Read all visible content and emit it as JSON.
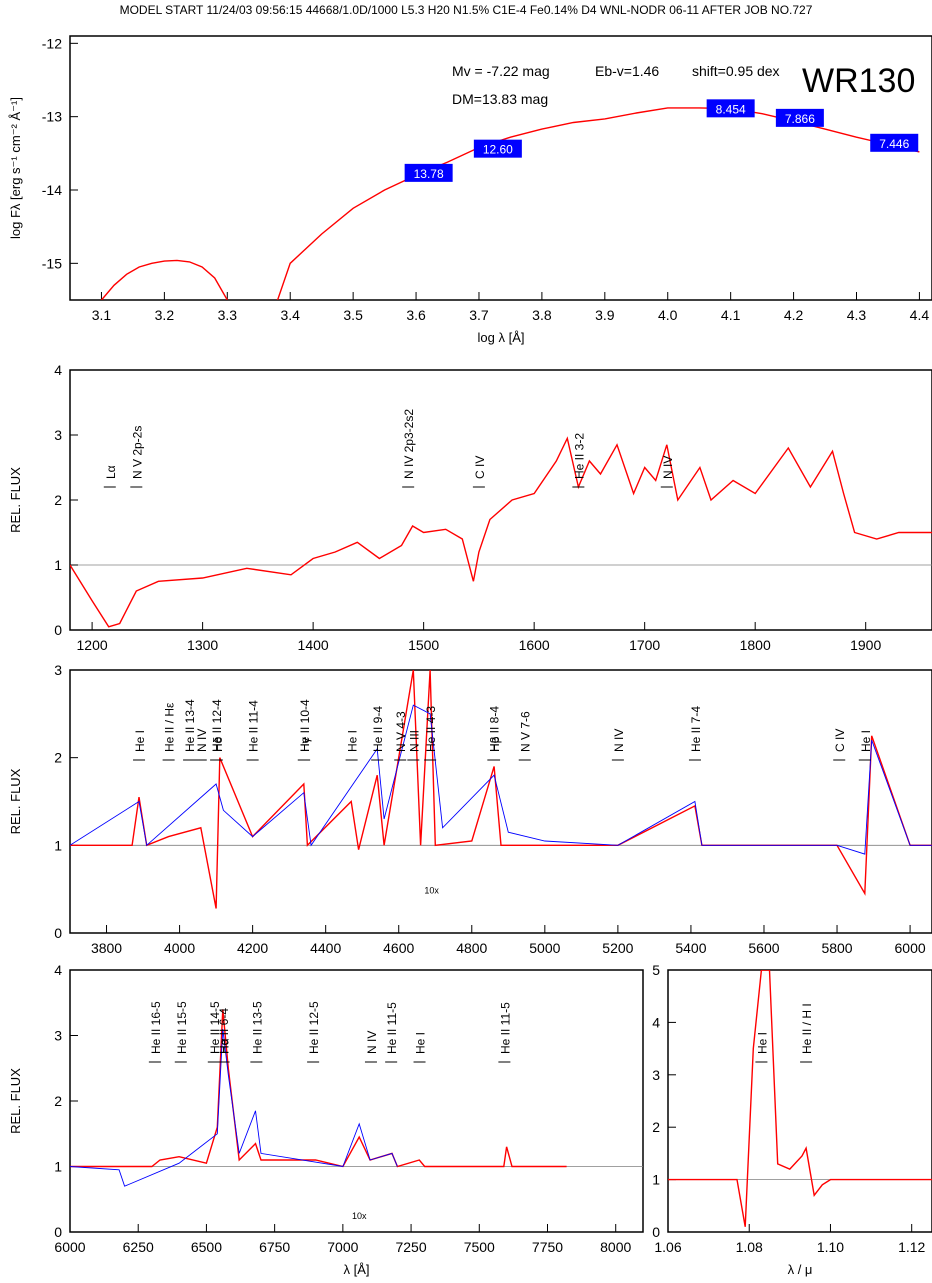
{
  "header": "MODEL START   11/24/03  09:56:15   44668/1.0D/1000  L5.3  H20  N1.5%  C1E-4  Fe0.14%  D4  WNL-NODR  06-11     AFTER JOB NO.727",
  "colors": {
    "model": "#ff0000",
    "observed": "#0000ff",
    "photometry_box": "#0000ff",
    "continuum": "#808080"
  },
  "chart_data": [
    {
      "id": "sed",
      "type": "line",
      "xlabel": "log λ [Å]",
      "ylabel": "log Fλ [erg s⁻¹ cm⁻² Å⁻¹]",
      "xlim": [
        3.05,
        4.42
      ],
      "ylim": [
        -15.5,
        -11.9
      ],
      "xticks": [
        3.1,
        3.2,
        3.3,
        3.4,
        3.5,
        3.6,
        3.7,
        3.8,
        3.9,
        4.0,
        4.1,
        4.2,
        4.3,
        4.4
      ],
      "yticks": [
        -12,
        -13,
        -14,
        -15
      ],
      "annotations": {
        "mv": "Mv = -7.22 mag",
        "ebv": "Eb-v=1.46",
        "shift": "shift=0.95 dex",
        "dm": "DM=13.83 mag",
        "star": "WR130"
      },
      "series": [
        {
          "role": "model-uv-bump",
          "x": [
            3.1,
            3.12,
            3.14,
            3.16,
            3.18,
            3.2,
            3.22,
            3.24,
            3.26,
            3.28,
            3.3
          ],
          "y": [
            -15.5,
            -15.3,
            -15.15,
            -15.05,
            -15.0,
            -14.97,
            -14.96,
            -14.98,
            -15.05,
            -15.2,
            -15.5
          ]
        },
        {
          "role": "model-continuum",
          "x": [
            3.38,
            3.4,
            3.45,
            3.5,
            3.55,
            3.6,
            3.65,
            3.7,
            3.75,
            3.8,
            3.85,
            3.9,
            3.95,
            4.0,
            4.05,
            4.1,
            4.15,
            4.2,
            4.25,
            4.3,
            4.35,
            4.4
          ],
          "y": [
            -15.5,
            -15.0,
            -14.6,
            -14.25,
            -14.0,
            -13.8,
            -13.62,
            -13.42,
            -13.28,
            -13.17,
            -13.08,
            -13.03,
            -12.95,
            -12.88,
            -12.88,
            -12.89,
            -12.96,
            -13.06,
            -13.17,
            -13.28,
            -13.38,
            -13.48
          ]
        }
      ],
      "photometry": [
        {
          "x": 3.62,
          "y": -13.78,
          "label": "13.78"
        },
        {
          "x": 3.73,
          "y": -13.45,
          "label": "12.60"
        },
        {
          "x": 4.1,
          "y": -12.9,
          "label": "8.454"
        },
        {
          "x": 4.21,
          "y": -13.03,
          "label": "7.866"
        },
        {
          "x": 4.36,
          "y": -13.37,
          "label": "7.446"
        }
      ]
    },
    {
      "id": "uv",
      "type": "line",
      "ylabel": "REL. FLUX",
      "xlim": [
        1180,
        1960
      ],
      "ylim": [
        0,
        4
      ],
      "xticks": [
        1200,
        1300,
        1400,
        1500,
        1600,
        1700,
        1800,
        1900
      ],
      "yticks": [
        0,
        1,
        2,
        3,
        4
      ],
      "series": [
        {
          "role": "model",
          "x": [
            1180,
            1200,
            1215,
            1225,
            1240,
            1260,
            1300,
            1340,
            1380,
            1400,
            1420,
            1440,
            1460,
            1480,
            1490,
            1500,
            1520,
            1535,
            1545,
            1550,
            1560,
            1580,
            1600,
            1620,
            1630,
            1640,
            1650,
            1660,
            1675,
            1690,
            1700,
            1710,
            1720,
            1730,
            1750,
            1760,
            1780,
            1800,
            1830,
            1850,
            1870,
            1880,
            1890,
            1910,
            1930,
            1960
          ],
          "y": [
            1.0,
            0.45,
            0.05,
            0.1,
            0.6,
            0.75,
            0.8,
            0.95,
            0.85,
            1.1,
            1.2,
            1.35,
            1.1,
            1.3,
            1.6,
            1.5,
            1.55,
            1.4,
            0.75,
            1.2,
            1.7,
            2.0,
            2.1,
            2.6,
            2.95,
            2.2,
            2.6,
            2.4,
            2.85,
            2.1,
            2.5,
            2.3,
            2.85,
            2.0,
            2.5,
            2.0,
            2.3,
            2.1,
            2.8,
            2.2,
            2.75,
            2.1,
            1.5,
            1.4,
            1.5,
            1.5
          ]
        }
      ],
      "labels": [
        {
          "x": 1216,
          "text": "Lα"
        },
        {
          "x": 1240,
          "text": "N V 2p-2s"
        },
        {
          "x": 1486,
          "text": "N IV 2p3-2s2"
        },
        {
          "x": 1550,
          "text": "C IV"
        },
        {
          "x": 1640,
          "text": "He II 3-2"
        },
        {
          "x": 1720,
          "text": "N IV"
        }
      ]
    },
    {
      "id": "optical",
      "type": "line",
      "ylabel": "REL. FLUX",
      "xlim": [
        3700,
        6060
      ],
      "ylim": [
        0,
        3
      ],
      "xticks": [
        3800,
        4000,
        4200,
        4400,
        4600,
        4800,
        5000,
        5200,
        5400,
        5600,
        5800,
        6000
      ],
      "yticks": [
        0,
        1,
        2,
        3
      ],
      "inset_label": "10x",
      "series": [
        {
          "role": "model",
          "x": [
            3700,
            3870,
            3889,
            3910,
            3970,
            4058,
            4100,
            4110,
            4200,
            4340,
            4350,
            4470,
            4490,
            4541,
            4560,
            4640,
            4660,
            4686,
            4700,
            4800,
            4861,
            4880,
            5000,
            5200,
            5411,
            5430,
            5800,
            5876,
            5895,
            6000,
            6060
          ],
          "y": [
            1.0,
            1.0,
            1.55,
            1.0,
            1.1,
            1.2,
            0.28,
            2.0,
            1.1,
            1.7,
            1.0,
            1.5,
            0.95,
            1.8,
            1.0,
            3.0,
            1.0,
            3.0,
            1.0,
            1.05,
            1.9,
            1.0,
            1.0,
            1.0,
            1.45,
            1.0,
            1.0,
            0.45,
            2.25,
            1.0,
            1.0
          ]
        },
        {
          "role": "observed",
          "x": [
            3700,
            3889,
            3910,
            4100,
            4120,
            4200,
            4340,
            4360,
            4541,
            4560,
            4640,
            4686,
            4720,
            4861,
            4900,
            5000,
            5200,
            5411,
            5430,
            5800,
            5876,
            5895,
            6000,
            6060
          ],
          "y": [
            1.0,
            1.5,
            1.0,
            1.7,
            1.4,
            1.1,
            1.6,
            1.0,
            2.1,
            1.3,
            2.6,
            2.5,
            1.2,
            1.8,
            1.15,
            1.05,
            1.0,
            1.5,
            1.0,
            1.0,
            0.9,
            2.2,
            1.0,
            1.0
          ]
        }
      ],
      "labels": [
        {
          "x": 3889,
          "text": "He I"
        },
        {
          "x": 3970,
          "text": "He II / Hε"
        },
        {
          "x": 4026,
          "text": "He II 13-4"
        },
        {
          "x": 4058,
          "text": "N IV"
        },
        {
          "x": 4100,
          "text": "He II 12-4"
        },
        {
          "x": 4102,
          "text": "Hδ"
        },
        {
          "x": 4200,
          "text": "He II 11-4"
        },
        {
          "x": 4340,
          "text": "He II 10-4"
        },
        {
          "x": 4341,
          "text": "Hγ"
        },
        {
          "x": 4471,
          "text": "He I"
        },
        {
          "x": 4541,
          "text": "He II 9-4"
        },
        {
          "x": 4604,
          "text": "N V 4-3"
        },
        {
          "x": 4640,
          "text": "N III"
        },
        {
          "x": 4686,
          "text": "He II 4-3"
        },
        {
          "x": 4859,
          "text": "He II 8-4"
        },
        {
          "x": 4861,
          "text": "Hβ"
        },
        {
          "x": 4945,
          "text": "N V 7-6"
        },
        {
          "x": 5200,
          "text": "N IV"
        },
        {
          "x": 5411,
          "text": "He II 7-4"
        },
        {
          "x": 5806,
          "text": "C IV"
        },
        {
          "x": 5876,
          "text": "He I"
        }
      ]
    },
    {
      "id": "red",
      "type": "line",
      "ylabel": "REL. FLUX",
      "xlabel": "λ [Å]",
      "xlim": [
        6000,
        8100
      ],
      "ylim": [
        0,
        4
      ],
      "xticks": [
        6000,
        6250,
        6500,
        6750,
        7000,
        7250,
        7500,
        7750,
        8000
      ],
      "yticks": [
        0,
        1,
        2,
        3,
        4
      ],
      "inset_label": "10x",
      "series": [
        {
          "role": "model",
          "x": [
            6000,
            6300,
            6330,
            6400,
            6500,
            6540,
            6560,
            6580,
            6620,
            6680,
            6700,
            6900,
            7000,
            7060,
            7100,
            7180,
            7200,
            7280,
            7300,
            7590,
            7600,
            7620,
            7820
          ],
          "y": [
            1.0,
            1.0,
            1.1,
            1.15,
            1.05,
            1.6,
            3.4,
            2.5,
            1.1,
            1.35,
            1.1,
            1.1,
            1.0,
            1.45,
            1.1,
            1.2,
            1.0,
            1.1,
            1.0,
            1.0,
            1.3,
            1.0,
            1.0
          ]
        },
        {
          "role": "observed",
          "x": [
            6000,
            6180,
            6200,
            6400,
            6540,
            6560,
            6580,
            6620,
            6680,
            6700,
            7000,
            7060,
            7100,
            7180,
            7200
          ],
          "y": [
            1.0,
            0.95,
            0.7,
            1.05,
            1.5,
            3.1,
            2.4,
            1.2,
            1.85,
            1.2,
            1.0,
            1.65,
            1.1,
            1.2,
            1.0
          ]
        }
      ],
      "labels": [
        {
          "x": 6311,
          "text": "He II 16-5"
        },
        {
          "x": 6406,
          "text": "He II 15-5"
        },
        {
          "x": 6527,
          "text": "He II 14-5"
        },
        {
          "x": 6560,
          "text": "He II 6-4"
        },
        {
          "x": 6563,
          "text": "Hα"
        },
        {
          "x": 6683,
          "text": "He II 13-5"
        },
        {
          "x": 6891,
          "text": "He II 12-5"
        },
        {
          "x": 7103,
          "text": "N IV"
        },
        {
          "x": 7177,
          "text": "He II 11-5"
        },
        {
          "x": 7281,
          "text": "He I"
        },
        {
          "x": 7592,
          "text": "He II 11-5"
        }
      ]
    },
    {
      "id": "ir",
      "type": "line",
      "xlabel": "λ / μ",
      "xlim": [
        1.06,
        1.125
      ],
      "ylim": [
        0,
        5
      ],
      "xticks": [
        1.06,
        1.08,
        1.1,
        1.12
      ],
      "yticks": [
        0,
        1,
        2,
        3,
        4,
        5
      ],
      "series": [
        {
          "role": "model",
          "x": [
            1.06,
            1.077,
            1.079,
            1.081,
            1.083,
            1.085,
            1.087,
            1.09,
            1.093,
            1.094,
            1.096,
            1.098,
            1.1,
            1.125
          ],
          "y": [
            1.0,
            1.0,
            0.1,
            3.5,
            5.0,
            5.0,
            1.3,
            1.2,
            1.45,
            1.6,
            0.7,
            0.9,
            1.0,
            1.0
          ]
        }
      ],
      "labels": [
        {
          "x": 1.083,
          "text": "He I"
        },
        {
          "x": 1.094,
          "text": "He II / H I"
        }
      ]
    }
  ]
}
